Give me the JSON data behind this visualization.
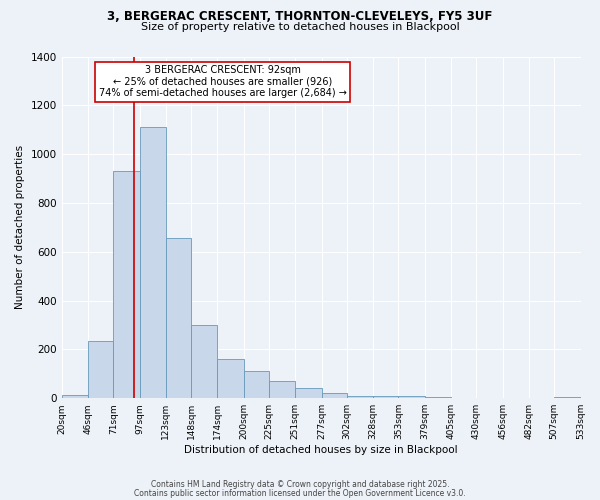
{
  "title_line1": "3, BERGERAC CRESCENT, THORNTON-CLEVELEYS, FY5 3UF",
  "title_line2": "Size of property relative to detached houses in Blackpool",
  "xlabel": "Distribution of detached houses by size in Blackpool",
  "ylabel": "Number of detached properties",
  "bar_color": "#c8d8ea",
  "bar_edge_color": "#6699bb",
  "background_color": "#edf2f8",
  "grid_color": "#ffffff",
  "bin_edges": [
    20,
    46,
    71,
    97,
    123,
    148,
    174,
    200,
    225,
    251,
    277,
    302,
    328,
    353,
    379,
    405,
    430,
    456,
    482,
    507,
    533
  ],
  "bar_heights": [
    15,
    235,
    930,
    1110,
    655,
    300,
    160,
    110,
    70,
    42,
    20,
    10,
    10,
    10,
    5,
    0,
    0,
    0,
    0,
    5
  ],
  "tick_labels": [
    "20sqm",
    "46sqm",
    "71sqm",
    "97sqm",
    "123sqm",
    "148sqm",
    "174sqm",
    "200sqm",
    "225sqm",
    "251sqm",
    "277sqm",
    "302sqm",
    "328sqm",
    "353sqm",
    "379sqm",
    "405sqm",
    "430sqm",
    "456sqm",
    "482sqm",
    "507sqm",
    "533sqm"
  ],
  "property_value": 92,
  "vline_color": "#cc0000",
  "annotation_title": "3 BERGERAC CRESCENT: 92sqm",
  "annotation_line1": "← 25% of detached houses are smaller (926)",
  "annotation_line2": "74% of semi-detached houses are larger (2,684) →",
  "annotation_box_color": "#ffffff",
  "annotation_box_edge": "#cc0000",
  "footnote1": "Contains HM Land Registry data © Crown copyright and database right 2025.",
  "footnote2": "Contains public sector information licensed under the Open Government Licence v3.0.",
  "ylim": [
    0,
    1400
  ],
  "yticks": [
    0,
    200,
    400,
    600,
    800,
    1000,
    1200,
    1400
  ]
}
